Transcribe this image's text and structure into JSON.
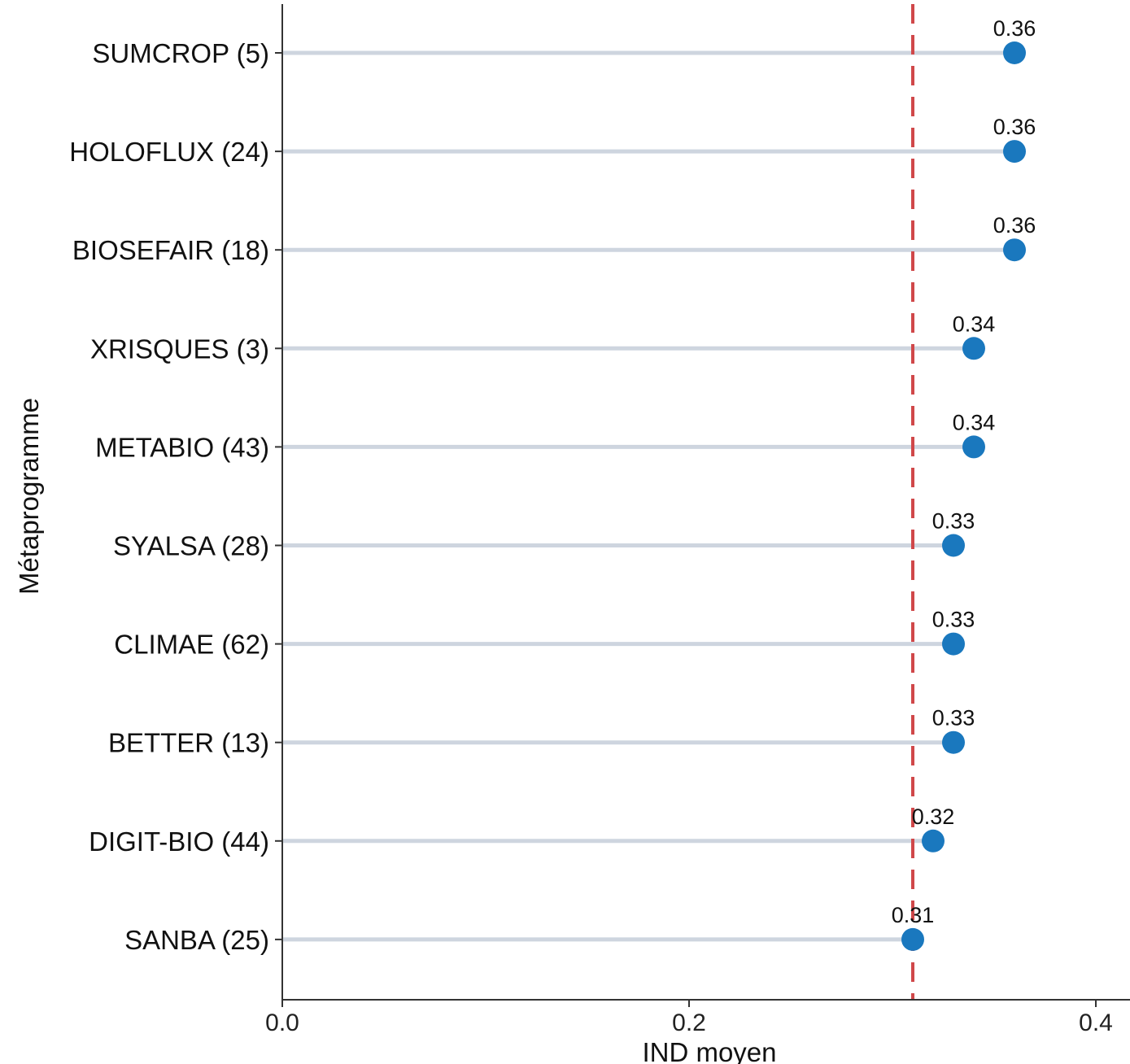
{
  "chart_data": {
    "type": "lollipop",
    "xlabel": "IND moyen",
    "ylabel": "Métaprogramme",
    "xlim": [
      0.0,
      0.4
    ],
    "xticks": [
      0.0,
      0.2,
      0.4
    ],
    "xtick_labels": [
      "0.0",
      "0.2",
      "0.4"
    ],
    "categories": [
      "SUMCROP (5)",
      "HOLOFLUX (24)",
      "BIOSEFAIR (18)",
      "XRISQUES (3)",
      "METABIO (43)",
      "SYALSA (28)",
      "CLIMAE (62)",
      "BETTER (13)",
      "DIGIT-BIO (44)",
      "SANBA (25)"
    ],
    "values": [
      0.36,
      0.36,
      0.36,
      0.34,
      0.34,
      0.33,
      0.33,
      0.33,
      0.32,
      0.31
    ],
    "value_labels": [
      "0.36",
      "0.36",
      "0.36",
      "0.34",
      "0.34",
      "0.33",
      "0.33",
      "0.33",
      "0.32",
      "0.31"
    ],
    "reference_line": {
      "value": 0.31,
      "style": "dashed"
    },
    "grid": false,
    "legend": "none",
    "colors": {
      "point": "#1A78BE",
      "stem": "#CED5DF",
      "reference_line": "#D0484A",
      "axis": "#333333"
    }
  }
}
